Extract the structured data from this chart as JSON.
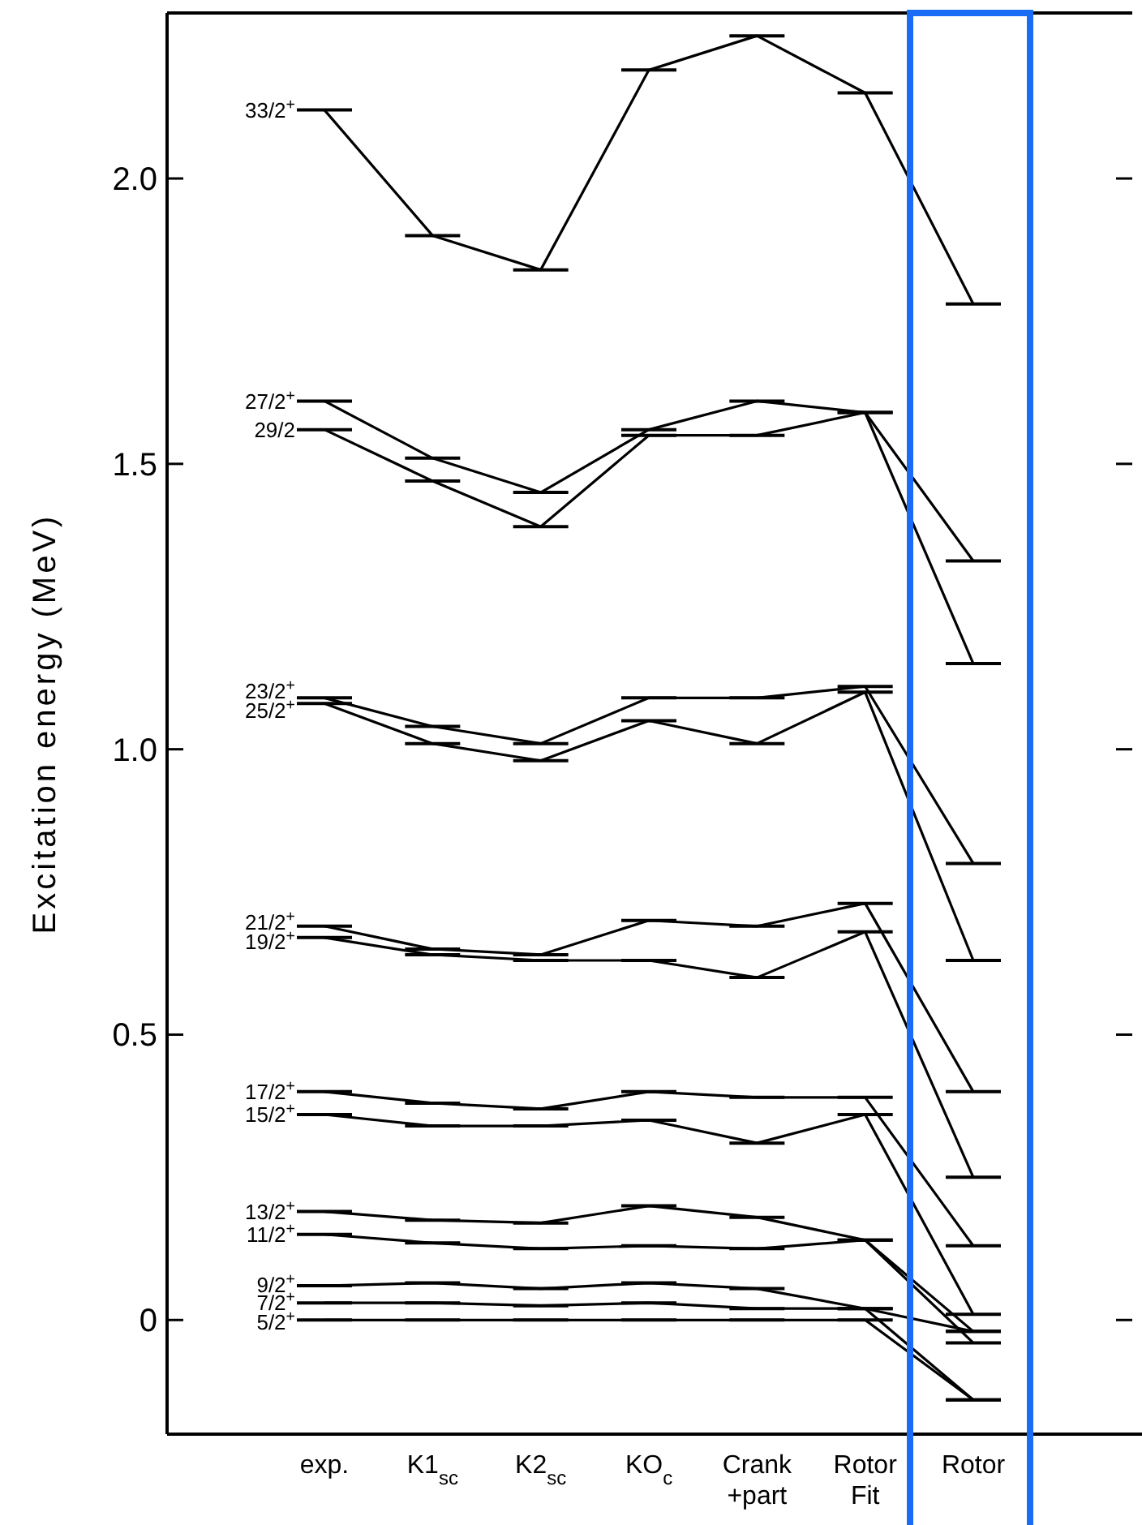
{
  "chart_data": {
    "type": "line",
    "ylabel": "Excitation energy (MeV)",
    "categories": [
      "exp.",
      "K1$_{sc}$",
      "K2$_{sc}$",
      "KO$_{c}$",
      "Crank\n+part",
      "Rotor\nFit",
      "Rotor"
    ],
    "ylim": [
      -0.2,
      2.29
    ],
    "yticks": [
      0,
      0.5,
      {
        "value": 1,
        "label": "1.0"
      },
      1.5,
      {
        "value": 2,
        "label": "2.0"
      }
    ],
    "grid": false,
    "legend": "left",
    "line_style": "solid",
    "series": [
      {
        "name": "5/2$^{+}$",
        "color": "#000000",
        "values": [
          0,
          0,
          0,
          0,
          0,
          0,
          -0.14
        ]
      },
      {
        "name": "7/2$^{+}$",
        "color": "#000000",
        "values": [
          0.03,
          0.03,
          0.025,
          0.03,
          0.02,
          0.02,
          -0.14
        ]
      },
      {
        "name": "9/2$^{+}$",
        "color": "#000000",
        "values": [
          0.06,
          0.065,
          0.055,
          0.065,
          0.055,
          0.02,
          -0.02
        ]
      },
      {
        "name": "11/2$^{+}$",
        "color": "#000000",
        "values": [
          0.15,
          0.135,
          0.125,
          0.13,
          0.125,
          0.14,
          -0.04
        ]
      },
      {
        "name": "13/2$^{+}$",
        "color": "#000000",
        "values": [
          0.19,
          0.175,
          0.17,
          0.2,
          0.18,
          0.14,
          -0.02
        ]
      },
      {
        "name": "15/2$^{+}$",
        "color": "#000000",
        "values": [
          0.36,
          0.34,
          0.34,
          0.35,
          0.31,
          0.36,
          0.01
        ]
      },
      {
        "name": "17/2$^{+}$",
        "color": "#000000",
        "values": [
          0.4,
          0.38,
          0.37,
          0.4,
          0.39,
          0.39,
          0.13
        ]
      },
      {
        "name": "19/2$^{+}$",
        "color": "#000000",
        "values": [
          0.67,
          0.64,
          0.63,
          0.63,
          0.6,
          0.68,
          0.25
        ]
      },
      {
        "name": "21/2$^{+}$",
        "color": "#000000",
        "values": [
          0.69,
          0.65,
          0.64,
          0.7,
          0.69,
          0.73,
          0.4
        ]
      },
      {
        "name": "23/2$^{+}$",
        "color": "#000000",
        "values": [
          1.09,
          1.04,
          1.01,
          1.09,
          1.09,
          1.11,
          0.8
        ]
      },
      {
        "name": "25/2$^{+}$",
        "color": "#000000",
        "values": [
          1.08,
          1.01,
          0.98,
          1.05,
          1.01,
          1.1,
          0.63
        ]
      },
      {
        "name": "27/2$^{+}$",
        "color": "#000000",
        "values": [
          1.61,
          1.51,
          1.45,
          1.56,
          1.61,
          1.59,
          1.33
        ]
      },
      {
        "name": "29/2",
        "color": "#000000",
        "values": [
          1.56,
          1.47,
          1.39,
          1.55,
          1.55,
          1.59,
          1.15
        ]
      },
      {
        "name": "33/2$^{+}$",
        "color": "#000000",
        "values": [
          2.12,
          1.9,
          1.84,
          2.19,
          2.25,
          2.15,
          1.78
        ]
      }
    ]
  }
}
